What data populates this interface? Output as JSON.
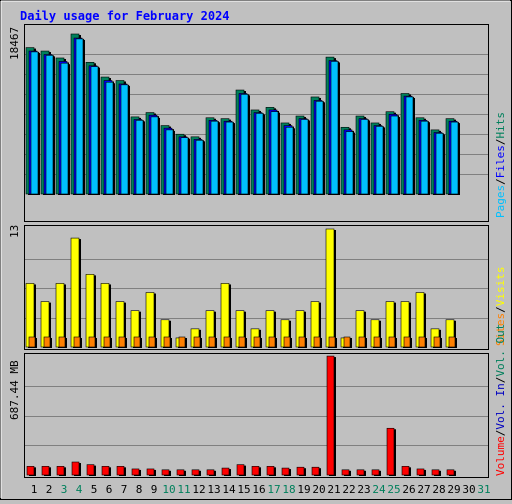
{
  "title": "Daily usage for February 2024",
  "legend": {
    "hits": "Hits",
    "files": "Files",
    "pages": "Pages",
    "visits": "Visits",
    "sites": "Sites",
    "vol_out": "Vol. Out",
    "vol_in": "Vol. In",
    "volume": "Volume",
    "sep": "/"
  },
  "colors": {
    "hits": "#00805c",
    "files": "#0000ff",
    "pages": "#00c0ff",
    "visits": "#ffff00",
    "sites": "#ff8000",
    "volume": "#ff0000",
    "vol_in": "#0000c0",
    "vol_out": "#00805c",
    "title": "#0000ff",
    "background": "#c0c0c0",
    "plot": "#c0c0c0",
    "weekend": "#00805c",
    "weekday": "#000000"
  },
  "chart_data": [
    {
      "type": "bar",
      "name": "hits-files-pages",
      "axis_max_label": "18467",
      "ylim": [
        0,
        18467
      ],
      "grid": true,
      "series": [
        {
          "name": "Hits",
          "values": [
            16900,
            16500,
            15700,
            18467,
            15200,
            13500,
            13100,
            8900,
            9400,
            7900,
            6900,
            6600,
            8800,
            8700,
            12000,
            9700,
            10000,
            8200,
            9000,
            11200,
            15800,
            7700,
            9000,
            8200,
            9500,
            11600,
            8800,
            7400,
            8700
          ]
        },
        {
          "name": "Files",
          "values": [
            16500,
            16100,
            15300,
            18000,
            14800,
            13100,
            12700,
            8600,
            9100,
            7600,
            6600,
            6300,
            8500,
            8400,
            11600,
            9400,
            9700,
            7900,
            8700,
            10800,
            15400,
            7400,
            8700,
            7900,
            9200,
            11300,
            8500,
            7100,
            8400
          ]
        },
        {
          "name": "Pages",
          "values": [
            16400,
            16000,
            15100,
            17900,
            14700,
            12900,
            12600,
            8500,
            8900,
            7400,
            6500,
            6200,
            8400,
            8300,
            11500,
            9300,
            9500,
            7700,
            8600,
            10700,
            15300,
            7200,
            8600,
            7800,
            9000,
            11200,
            8400,
            7000,
            8300
          ]
        }
      ]
    },
    {
      "type": "bar",
      "name": "visits-sites",
      "axis_max_label": "13",
      "ylim": [
        0,
        13
      ],
      "grid": true,
      "series": [
        {
          "name": "Visits",
          "values": [
            7,
            5,
            7,
            12,
            8,
            7,
            5,
            4,
            6,
            3,
            1,
            2,
            4,
            7,
            4,
            2,
            4,
            3,
            4,
            5,
            13,
            1,
            4,
            3,
            5,
            5,
            6,
            2,
            3
          ]
        },
        {
          "name": "Sites",
          "values": [
            1,
            1,
            1,
            1,
            1,
            1,
            1,
            1,
            1,
            1,
            1,
            1,
            1,
            1,
            1,
            1,
            1,
            1,
            1,
            1,
            1,
            1,
            1,
            1,
            1,
            1,
            1,
            1,
            1
          ]
        }
      ]
    },
    {
      "type": "bar",
      "name": "volume",
      "axis_max_label": "687.44 MB",
      "ylim": [
        0,
        687.44
      ],
      "grid": true,
      "series": [
        {
          "name": "Volume",
          "values": [
            50,
            50,
            50,
            75,
            60,
            50,
            50,
            35,
            35,
            30,
            30,
            30,
            30,
            40,
            60,
            50,
            50,
            40,
            45,
            45,
            687,
            30,
            30,
            30,
            270,
            50,
            35,
            30,
            30
          ]
        }
      ]
    }
  ],
  "x_labels": [
    "1",
    "2",
    "3",
    "4",
    "5",
    "6",
    "7",
    "8",
    "9",
    "10",
    "11",
    "12",
    "13",
    "14",
    "15",
    "16",
    "17",
    "18",
    "19",
    "20",
    "21",
    "22",
    "23",
    "24",
    "25",
    "26",
    "27",
    "28",
    "29",
    "30",
    "31"
  ],
  "weekend_days": [
    3,
    4,
    10,
    11,
    17,
    18,
    24,
    25,
    31
  ]
}
